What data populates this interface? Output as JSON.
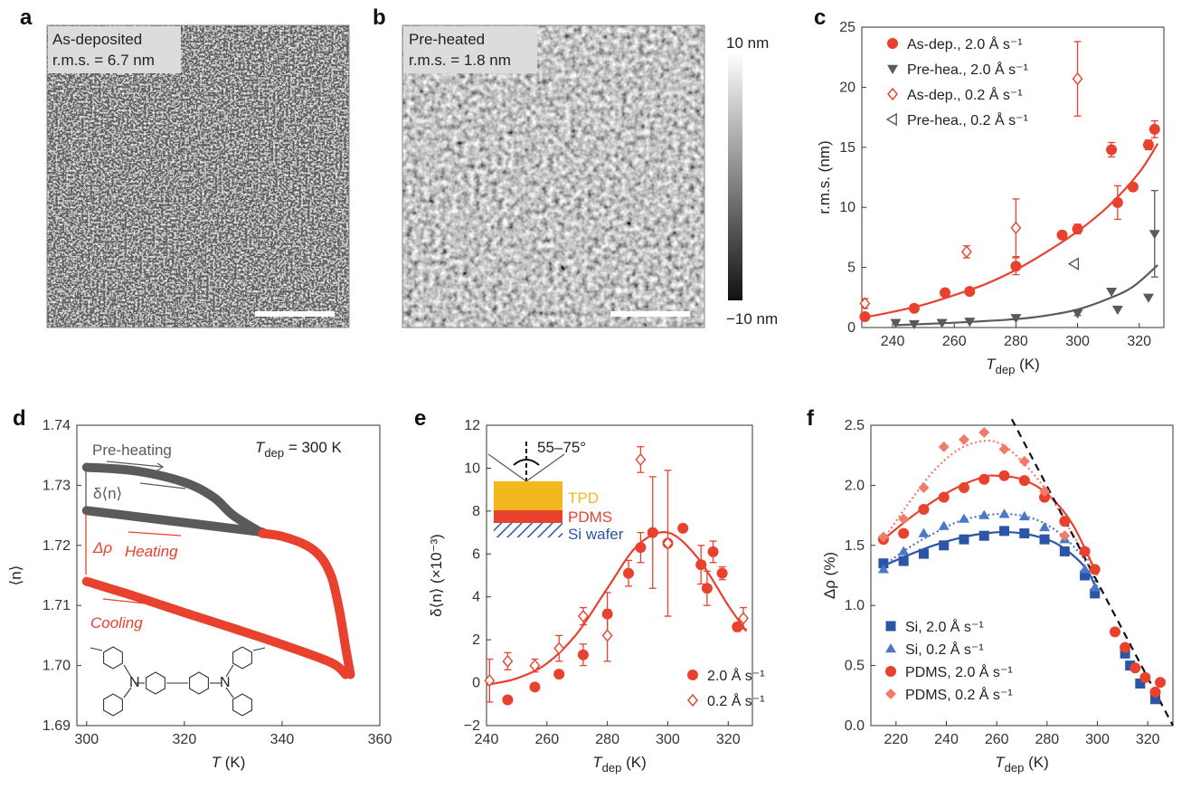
{
  "colors": {
    "red": "#e8412e",
    "pink": "#f27a6a",
    "gray": "#5a5a5a",
    "blue": "#2b55a6",
    "lightblue": "#4a78c4",
    "black": "#111111",
    "tpd": "#f3b81e",
    "pdms": "#e8412e",
    "si": "#2b55a6"
  },
  "panels": {
    "a": {
      "label": "a",
      "line1": "As-deposited",
      "line2": "r.m.s. = 6.7 nm"
    },
    "b": {
      "label": "b",
      "line1": "Pre-heated",
      "line2": "r.m.s. = 1.8 nm"
    },
    "colorbar": {
      "top": "10 nm",
      "bottom": "−10 nm"
    }
  },
  "chart_data": [
    {
      "panel": "c",
      "type": "scatter",
      "ylabel": "r.m.s. (nm)",
      "xlabel_main": "T",
      "xlabel_sub": "dep",
      "xlabel_unit": " (K)",
      "xlim": [
        230,
        328
      ],
      "ylim": [
        0,
        25
      ],
      "xticks": [
        240,
        260,
        280,
        300,
        320
      ],
      "yticks": [
        0,
        5,
        10,
        15,
        20,
        25
      ],
      "legend_position": "top-left",
      "series": [
        {
          "name": "As-dep., 2.0 Å s⁻¹",
          "marker": "circle",
          "color": "red",
          "x": [
            231,
            247,
            257,
            265,
            280,
            295,
            300,
            311,
            313,
            318,
            323,
            325
          ],
          "y": [
            0.9,
            1.6,
            2.9,
            3.0,
            5.1,
            7.7,
            8.2,
            14.8,
            10.4,
            11.7,
            15.2,
            16.5
          ],
          "err": [
            0.2,
            0.2,
            0.3,
            0.2,
            0.7,
            0.3,
            0.4,
            0.6,
            1.4,
            0,
            0.4,
            0.7
          ]
        },
        {
          "name": "Pre-hea., 2.0 Å s⁻¹",
          "marker": "triangle-down",
          "color": "gray",
          "x": [
            241,
            247,
            256,
            265,
            280,
            300,
            311,
            313,
            323,
            325
          ],
          "y": [
            0.4,
            0.3,
            0.4,
            0.5,
            0.8,
            1.2,
            3.0,
            1.5,
            2.5,
            7.8
          ],
          "err": [
            0,
            0,
            0,
            0,
            0,
            0.2,
            0,
            0,
            0,
            3.6
          ]
        },
        {
          "name": "As-dep., 0.2 Å s⁻¹",
          "marker": "diamond-open",
          "color": "red",
          "x": [
            231,
            264,
            280,
            300
          ],
          "y": [
            2.0,
            6.3,
            8.3,
            20.7
          ],
          "err": [
            0.4,
            0.5,
            2.4,
            3.1
          ]
        },
        {
          "name": "Pre-hea., 0.2 Å s⁻¹",
          "marker": "triangle-left-open",
          "color": "gray",
          "x": [
            299
          ],
          "y": [
            5.3
          ],
          "err": [
            0
          ]
        }
      ],
      "fits": [
        {
          "color": "red",
          "x": [
            230,
            240,
            250,
            260,
            270,
            280,
            290,
            300,
            310,
            320,
            326
          ],
          "y": [
            0.8,
            1.3,
            1.9,
            2.7,
            3.6,
            4.8,
            6.3,
            8.0,
            10.1,
            12.9,
            15.3
          ]
        },
        {
          "color": "gray",
          "x": [
            241,
            260,
            280,
            290,
            300,
            310,
            318,
            326
          ],
          "y": [
            0.2,
            0.4,
            0.7,
            1.0,
            1.5,
            2.4,
            3.4,
            5.2
          ]
        }
      ]
    },
    {
      "panel": "d",
      "type": "line",
      "ylabel": "⟨n⟩",
      "xlabel_main": "T",
      "xlabel_unit": " (K)",
      "title_main": "T",
      "title_sub": "dep",
      "title_rest": " = 300 K",
      "xlim": [
        298,
        360
      ],
      "ylim": [
        1.69,
        1.74
      ],
      "xticks": [
        300,
        320,
        340,
        360
      ],
      "yticks": [
        1.69,
        1.7,
        1.71,
        1.72,
        1.73,
        1.74
      ],
      "annotations": {
        "preheating": "Pre-heating",
        "delta_n": "δ⟨n⟩",
        "delta_rho": "Δρ",
        "heating": "Heating",
        "cooling": "Cooling"
      },
      "series": [
        {
          "name": "Pre-heating",
          "color": "gray",
          "x": [
            300,
            310,
            320,
            326,
            330,
            336
          ],
          "y": [
            1.733,
            1.7324,
            1.7305,
            1.728,
            1.725,
            1.722
          ]
        },
        {
          "name": "Pre-heating return",
          "color": "gray",
          "x": [
            300,
            310,
            320,
            330,
            336
          ],
          "y": [
            1.7258,
            1.7248,
            1.7238,
            1.7228,
            1.7222
          ]
        },
        {
          "name": "Heating",
          "color": "red",
          "x": [
            336,
            340,
            345,
            348,
            350,
            351,
            352,
            353,
            354
          ],
          "y": [
            1.722,
            1.7215,
            1.72,
            1.718,
            1.715,
            1.712,
            1.708,
            1.703,
            1.6985
          ]
        },
        {
          "name": "Cooling",
          "color": "red",
          "x": [
            300,
            310,
            320,
            330,
            340,
            350,
            353
          ],
          "y": [
            1.714,
            1.7115,
            1.7088,
            1.7062,
            1.7035,
            1.7005,
            1.6985
          ]
        }
      ]
    },
    {
      "panel": "e",
      "type": "scatter",
      "ylabel": "δ⟨n⟩ (×10⁻³)",
      "xlabel_main": "T",
      "xlabel_sub": "dep",
      "xlabel_unit": " (K)",
      "xlim": [
        240,
        328
      ],
      "ylim": [
        -2,
        12
      ],
      "xticks": [
        240,
        260,
        280,
        300,
        320
      ],
      "yticks": [
        -2,
        0,
        2,
        4,
        6,
        8,
        10,
        12
      ],
      "legend_position": "bottom-right",
      "inset": {
        "angle": "55–75°",
        "tpd": "TPD",
        "pdms": "PDMS",
        "si": "Si wafer"
      },
      "series": [
        {
          "name": "2.0 Å s⁻¹",
          "marker": "circle",
          "color": "red",
          "x": [
            247,
            256,
            264,
            272,
            280,
            287,
            291,
            295,
            300,
            305,
            311,
            313,
            315,
            318,
            323
          ],
          "y": [
            -0.8,
            -0.2,
            0.4,
            1.3,
            3.2,
            5.1,
            6.3,
            7.0,
            6.5,
            7.2,
            5.5,
            4.4,
            6.1,
            5.1,
            2.6
          ],
          "err": [
            0,
            0,
            0,
            0.5,
            1.0,
            0.6,
            0.7,
            2.6,
            3.4,
            0,
            0.9,
            0.8,
            0.5,
            0.3,
            0.2
          ]
        },
        {
          "name": "0.2 Å s⁻¹",
          "marker": "diamond-open",
          "color": "red",
          "x": [
            241,
            247,
            256,
            264,
            272,
            280,
            291,
            300,
            325
          ],
          "y": [
            0.1,
            1.0,
            0.8,
            1.6,
            3.1,
            2.2,
            10.4,
            6.5,
            3.0
          ],
          "err": [
            1.0,
            0.4,
            0.3,
            0.6,
            0.4,
            1.2,
            0.6,
            0,
            0.5
          ]
        }
      ],
      "fits": [
        {
          "color": "red",
          "x": [
            240,
            250,
            260,
            270,
            280,
            290,
            300,
            310,
            320,
            326
          ],
          "y": [
            -0.1,
            0.2,
            0.9,
            2.3,
            4.4,
            6.4,
            7.0,
            5.8,
            3.6,
            2.4
          ]
        }
      ]
    },
    {
      "panel": "f",
      "type": "scatter",
      "ylabel": "Δρ (%)",
      "xlabel_main": "T",
      "xlabel_sub": "dep",
      "xlabel_unit": " (K)",
      "xlim": [
        210,
        330
      ],
      "ylim": [
        0,
        2.5
      ],
      "xticks": [
        220,
        240,
        260,
        280,
        300,
        320
      ],
      "yticks": [
        0,
        0.5,
        1.0,
        1.5,
        2.0,
        2.5
      ],
      "legend_position": "bottom-left",
      "series": [
        {
          "name": "Si, 2.0 Å s⁻¹",
          "marker": "square",
          "color": "blue",
          "x": [
            215,
            223,
            231,
            239,
            247,
            255,
            263,
            271,
            279,
            287,
            295,
            299,
            311,
            313,
            317,
            323
          ],
          "y": [
            1.35,
            1.37,
            1.43,
            1.5,
            1.55,
            1.58,
            1.62,
            1.6,
            1.55,
            1.45,
            1.25,
            1.1,
            0.6,
            0.5,
            0.35,
            0.22
          ]
        },
        {
          "name": "Si, 0.2 Å s⁻¹",
          "marker": "triangle-up",
          "color": "lightblue",
          "x": [
            215,
            223,
            231,
            239,
            247,
            255,
            263,
            271,
            279,
            287,
            295,
            299,
            311
          ],
          "y": [
            1.3,
            1.45,
            1.6,
            1.66,
            1.72,
            1.75,
            1.76,
            1.74,
            1.65,
            1.55,
            1.3,
            1.15,
            0.65
          ]
        },
        {
          "name": "PDMS, 2.0 Å s⁻¹",
          "marker": "circle",
          "color": "red",
          "x": [
            215,
            223,
            231,
            239,
            247,
            255,
            263,
            271,
            279,
            287,
            295,
            299,
            307,
            311,
            315,
            319,
            323,
            325
          ],
          "y": [
            1.55,
            1.6,
            1.8,
            1.9,
            1.98,
            2.05,
            2.08,
            2.04,
            1.9,
            1.7,
            1.45,
            1.3,
            0.78,
            0.65,
            0.48,
            0.4,
            0.28,
            0.36
          ]
        },
        {
          "name": "PDMS, 0.2 Å s⁻¹",
          "marker": "diamond",
          "color": "pink",
          "x": [
            215,
            223,
            231,
            239,
            247,
            255,
            263,
            271,
            279,
            287
          ],
          "y": [
            1.57,
            1.72,
            1.98,
            2.32,
            2.38,
            2.44,
            2.3,
            2.2,
            1.95,
            1.58
          ]
        }
      ],
      "fits": [
        {
          "color": "red",
          "style": "solid",
          "x": [
            215,
            225,
            235,
            245,
            255,
            260,
            270,
            280,
            290,
            300
          ],
          "y": [
            1.55,
            1.72,
            1.87,
            1.99,
            2.07,
            2.08,
            2.05,
            1.93,
            1.68,
            1.25
          ]
        },
        {
          "color": "blue",
          "style": "solid",
          "x": [
            215,
            225,
            235,
            245,
            255,
            265,
            275,
            285,
            295,
            300
          ],
          "y": [
            1.33,
            1.42,
            1.5,
            1.56,
            1.6,
            1.61,
            1.58,
            1.5,
            1.32,
            1.12
          ]
        },
        {
          "color": "lightblue",
          "style": "dotted",
          "x": [
            215,
            225,
            235,
            245,
            255,
            265,
            275,
            285,
            295,
            300
          ],
          "y": [
            1.33,
            1.48,
            1.6,
            1.7,
            1.75,
            1.76,
            1.72,
            1.6,
            1.38,
            1.15
          ]
        },
        {
          "color": "pink",
          "style": "dotted",
          "x": [
            215,
            225,
            235,
            245,
            255,
            262,
            270,
            280,
            290,
            300
          ],
          "y": [
            1.55,
            1.85,
            2.12,
            2.3,
            2.37,
            2.34,
            2.2,
            1.95,
            1.6,
            1.25
          ]
        },
        {
          "color": "black",
          "style": "dashed",
          "x": [
            266,
            330
          ],
          "y": [
            2.55,
            0.0
          ]
        }
      ]
    }
  ]
}
